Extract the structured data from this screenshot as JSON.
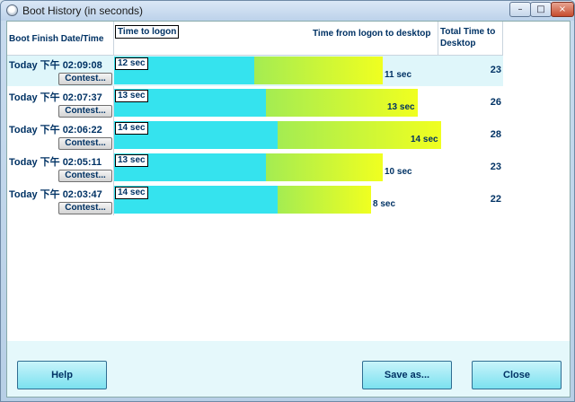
{
  "window": {
    "title": "Boot History (in seconds)",
    "controls": {
      "minimize": "–",
      "maximize": "□",
      "close": "×"
    }
  },
  "header": {
    "date_col": "Boot Finish Date/Time",
    "logon_col": "Time to logon",
    "desktop_col": "Time from logon to desktop",
    "total_col": "Total Time to Desktop"
  },
  "rows": [
    {
      "date": "Today  下午  02:09:08",
      "button": "Contest...",
      "logon_label": "12 sec",
      "logon_sec": 12,
      "desktop_label": "11 sec",
      "desktop_sec": 11,
      "total": "23"
    },
    {
      "date": "Today  下午  02:07:37",
      "button": "Contest...",
      "logon_label": "13 sec",
      "logon_sec": 13,
      "desktop_label": "13 sec",
      "desktop_sec": 13,
      "total": "26"
    },
    {
      "date": "Today  下午  02:06:22",
      "button": "Contest...",
      "logon_label": "14 sec",
      "logon_sec": 14,
      "desktop_label": "14 sec",
      "desktop_sec": 14,
      "total": "28"
    },
    {
      "date": "Today  下午  02:05:11",
      "button": "Contest...",
      "logon_label": "13 sec",
      "logon_sec": 13,
      "desktop_label": "10 sec",
      "desktop_sec": 10,
      "total": "23"
    },
    {
      "date": "Today  下午  02:03:47",
      "button": "Contest...",
      "logon_label": "14 sec",
      "logon_sec": 14,
      "desktop_label": "8 sec",
      "desktop_sec": 8,
      "total": "22"
    }
  ],
  "footer": {
    "help": "Help",
    "save_as": "Save as...",
    "close": "Close"
  },
  "colors": {
    "logon_bar": "#35e3ee",
    "desktop_bar_start": "#a4ec52",
    "desktop_bar_end": "#f0ff20",
    "text": "#003264"
  }
}
